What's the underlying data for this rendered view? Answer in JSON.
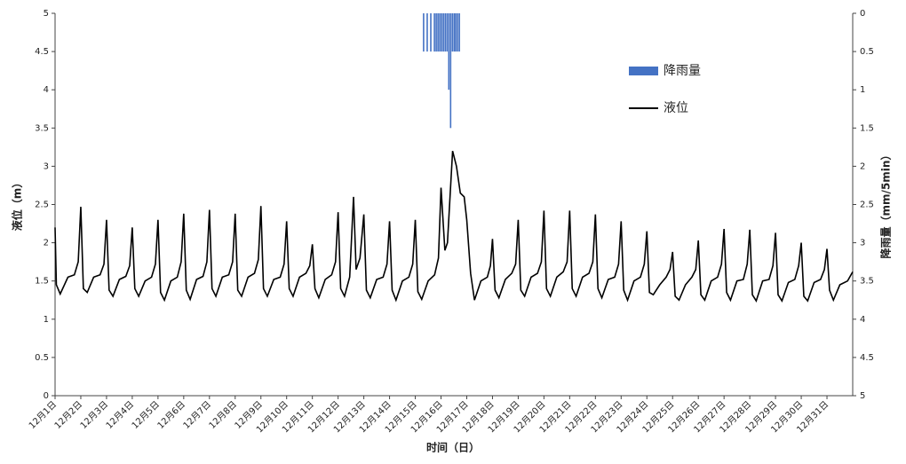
{
  "chart_data": {
    "type": "line",
    "xlabel": "时间（日）",
    "ylabel": "液位（m）",
    "y2label": "降雨量（mm/5min）",
    "xlim": [
      1,
      32
    ],
    "xticks": [
      {
        "value": 1,
        "label": "12月1日"
      },
      {
        "value": 2,
        "label": "12月2日"
      },
      {
        "value": 3,
        "label": "12月3日"
      },
      {
        "value": 4,
        "label": "12月4日"
      },
      {
        "value": 5,
        "label": "12月5日"
      },
      {
        "value": 6,
        "label": "12月6日"
      },
      {
        "value": 7,
        "label": "12月7日"
      },
      {
        "value": 8,
        "label": "12月8日"
      },
      {
        "value": 9,
        "label": "12月9日"
      },
      {
        "value": 10,
        "label": "12月10日"
      },
      {
        "value": 11,
        "label": "12月11日"
      },
      {
        "value": 12,
        "label": "12月12日"
      },
      {
        "value": 13,
        "label": "12月13日"
      },
      {
        "value": 14,
        "label": "12月14日"
      },
      {
        "value": 15,
        "label": "12月15日"
      },
      {
        "value": 16,
        "label": "12月16日"
      },
      {
        "value": 17,
        "label": "12月17日"
      },
      {
        "value": 18,
        "label": "12月18日"
      },
      {
        "value": 19,
        "label": "12月19日"
      },
      {
        "value": 20,
        "label": "12月20日"
      },
      {
        "value": 21,
        "label": "12月21日"
      },
      {
        "value": 22,
        "label": "12月22日"
      },
      {
        "value": 23,
        "label": "12月23日"
      },
      {
        "value": 24,
        "label": "12月24日"
      },
      {
        "value": 25,
        "label": "12月25日"
      },
      {
        "value": 26,
        "label": "12月26日"
      },
      {
        "value": 27,
        "label": "12月27日"
      },
      {
        "value": 28,
        "label": "12月28日"
      },
      {
        "value": 29,
        "label": "12月29日"
      },
      {
        "value": 30,
        "label": "12月30日"
      },
      {
        "value": 31,
        "label": "12月31日"
      }
    ],
    "ylim": [
      0,
      5
    ],
    "yticks": [
      0,
      0.5,
      1,
      1.5,
      2,
      2.5,
      3,
      3.5,
      4,
      4.5,
      5
    ],
    "y2lim": [
      0,
      5
    ],
    "y2ticks": [
      0,
      0.5,
      1,
      1.5,
      2,
      2.5,
      3,
      3.5,
      4,
      4.5,
      5
    ],
    "y2_inverted": true,
    "series": [
      {
        "name": "降雨量",
        "type": "bar",
        "axis": "y2",
        "color": "#4472c4",
        "x": [
          15.33,
          15.47,
          15.61,
          15.75,
          15.82,
          15.89,
          15.96,
          16.03,
          16.1,
          16.17,
          16.24,
          16.31,
          16.38,
          16.45,
          16.52,
          16.58,
          16.65,
          16.72
        ],
        "values": [
          0.5,
          0.5,
          0.5,
          0.5,
          0.5,
          0.5,
          0.5,
          0.5,
          0.5,
          0.5,
          0.5,
          1,
          1.5,
          0.5,
          0.5,
          0.5,
          0.5,
          0.5
        ]
      },
      {
        "name": "液位",
        "type": "line",
        "color": "#000000",
        "x": [
          1,
          1.05,
          1.2,
          1.5,
          1.75,
          1.9,
          2,
          2.1,
          2.25,
          2.5,
          2.75,
          2.9,
          3,
          3.1,
          3.25,
          3.5,
          3.75,
          3.9,
          4,
          4.1,
          4.25,
          4.5,
          4.75,
          4.9,
          5,
          5.1,
          5.25,
          5.5,
          5.75,
          5.9,
          6,
          6.1,
          6.25,
          6.5,
          6.75,
          6.9,
          7,
          7.1,
          7.25,
          7.5,
          7.75,
          7.9,
          8,
          8.1,
          8.25,
          8.5,
          8.75,
          8.9,
          9,
          9.1,
          9.25,
          9.5,
          9.75,
          9.9,
          10,
          10.1,
          10.25,
          10.5,
          10.75,
          10.9,
          11,
          11.1,
          11.25,
          11.5,
          11.75,
          11.9,
          12,
          12.1,
          12.25,
          12.45,
          12.6,
          12.7,
          12.85,
          13,
          13.1,
          13.25,
          13.5,
          13.75,
          13.9,
          14,
          14.1,
          14.25,
          14.5,
          14.75,
          14.9,
          15,
          15.1,
          15.25,
          15.5,
          15.75,
          15.9,
          16,
          16.15,
          16.25,
          16.45,
          16.6,
          16.75,
          16.9,
          17,
          17.15,
          17.3,
          17.55,
          17.8,
          17.92,
          18,
          18.1,
          18.25,
          18.5,
          18.75,
          18.9,
          19,
          19.1,
          19.25,
          19.5,
          19.75,
          19.9,
          20,
          20.1,
          20.25,
          20.5,
          20.75,
          20.9,
          21,
          21.1,
          21.25,
          21.5,
          21.75,
          21.9,
          22,
          22.1,
          22.25,
          22.5,
          22.75,
          22.9,
          23,
          23.1,
          23.25,
          23.5,
          23.75,
          23.9,
          24,
          24.1,
          24.25,
          24.5,
          24.75,
          24.9,
          25,
          25.1,
          25.25,
          25.5,
          25.75,
          25.9,
          26,
          26.1,
          26.25,
          26.5,
          26.75,
          26.9,
          27,
          27.1,
          27.25,
          27.5,
          27.75,
          27.9,
          28,
          28.1,
          28.25,
          28.5,
          28.75,
          28.9,
          29,
          29.1,
          29.25,
          29.5,
          29.75,
          29.9,
          30,
          30.1,
          30.25,
          30.5,
          30.75,
          30.9,
          31,
          31.1,
          31.25,
          31.5,
          31.8,
          32
        ],
        "values": [
          2.2,
          1.45,
          1.33,
          1.55,
          1.58,
          1.75,
          2.47,
          1.4,
          1.35,
          1.55,
          1.58,
          1.72,
          2.3,
          1.38,
          1.3,
          1.52,
          1.56,
          1.7,
          2.2,
          1.4,
          1.3,
          1.5,
          1.55,
          1.72,
          2.3,
          1.35,
          1.25,
          1.5,
          1.55,
          1.75,
          2.38,
          1.38,
          1.26,
          1.52,
          1.56,
          1.75,
          2.43,
          1.4,
          1.3,
          1.55,
          1.58,
          1.75,
          2.38,
          1.38,
          1.3,
          1.55,
          1.6,
          1.78,
          2.48,
          1.4,
          1.3,
          1.52,
          1.55,
          1.72,
          2.28,
          1.4,
          1.3,
          1.55,
          1.6,
          1.7,
          1.98,
          1.4,
          1.28,
          1.52,
          1.58,
          1.75,
          2.4,
          1.4,
          1.3,
          1.55,
          2.6,
          1.65,
          1.8,
          2.37,
          1.38,
          1.28,
          1.52,
          1.55,
          1.72,
          2.28,
          1.38,
          1.25,
          1.5,
          1.55,
          1.72,
          2.3,
          1.36,
          1.26,
          1.5,
          1.58,
          1.8,
          2.72,
          1.9,
          2.0,
          3.2,
          3.0,
          2.65,
          2.6,
          2.3,
          1.6,
          1.25,
          1.5,
          1.55,
          1.7,
          2.05,
          1.38,
          1.28,
          1.52,
          1.6,
          1.72,
          2.3,
          1.38,
          1.3,
          1.55,
          1.6,
          1.75,
          2.42,
          1.4,
          1.3,
          1.55,
          1.62,
          1.75,
          2.42,
          1.4,
          1.3,
          1.55,
          1.6,
          1.75,
          2.37,
          1.4,
          1.28,
          1.52,
          1.55,
          1.72,
          2.28,
          1.38,
          1.25,
          1.5,
          1.55,
          1.72,
          2.15,
          1.35,
          1.32,
          1.45,
          1.55,
          1.65,
          1.88,
          1.3,
          1.25,
          1.45,
          1.55,
          1.65,
          2.03,
          1.32,
          1.25,
          1.5,
          1.55,
          1.72,
          2.18,
          1.35,
          1.25,
          1.5,
          1.52,
          1.72,
          2.17,
          1.32,
          1.24,
          1.5,
          1.52,
          1.7,
          2.13,
          1.32,
          1.24,
          1.48,
          1.52,
          1.7,
          2.0,
          1.3,
          1.24,
          1.48,
          1.52,
          1.65,
          1.92,
          1.38,
          1.25,
          1.45,
          1.5,
          1.62
        ]
      }
    ]
  }
}
